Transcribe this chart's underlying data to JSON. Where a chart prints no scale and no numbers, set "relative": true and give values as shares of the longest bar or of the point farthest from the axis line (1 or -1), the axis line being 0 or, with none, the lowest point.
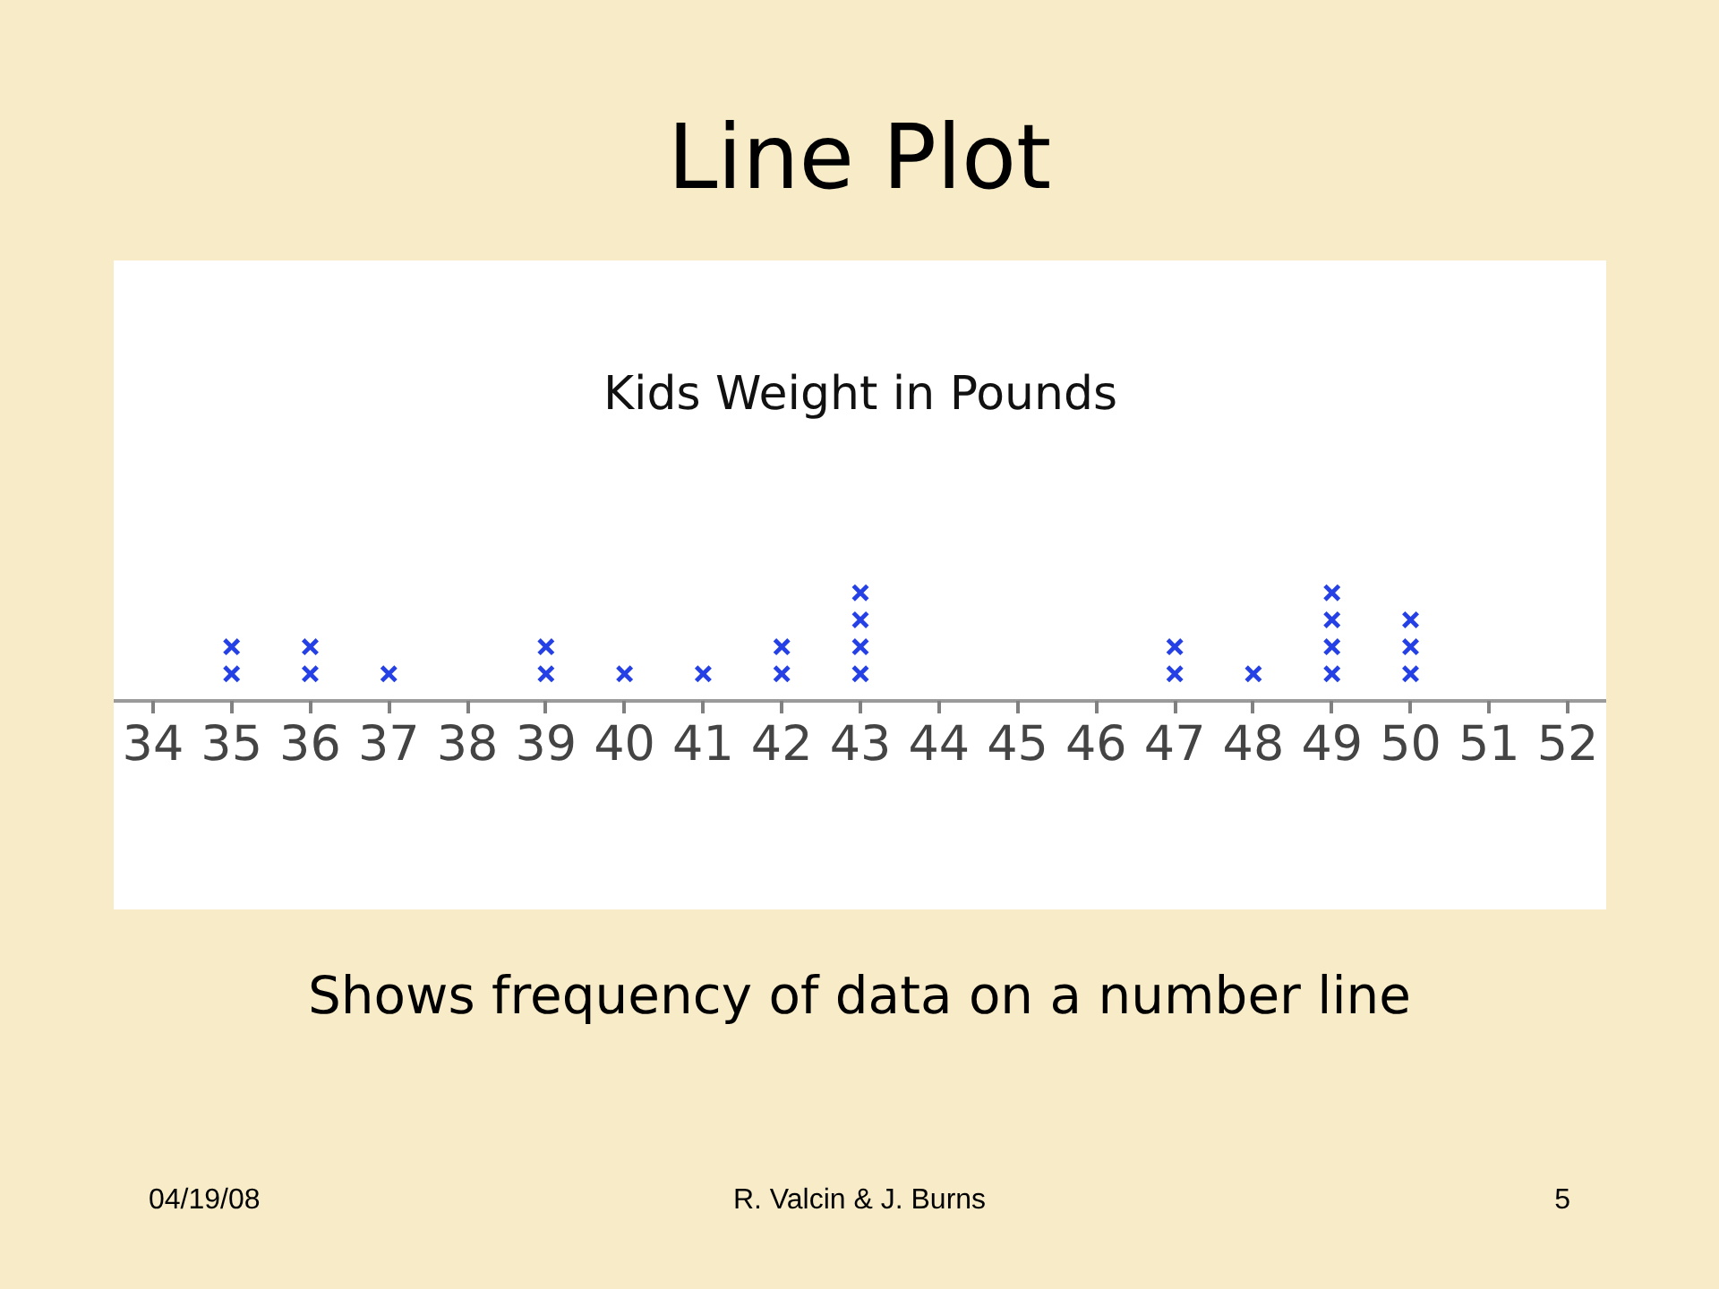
{
  "chart_data": {
    "type": "scatter",
    "title": "Line Plot",
    "subtitle": "Kids Weight in Pounds",
    "annotations": [
      "Shows frequency of data on a number line",
      "04/19/08",
      "R. Valcin & J. Burns",
      "5"
    ],
    "x": [
      35,
      35,
      36,
      36,
      37,
      39,
      39,
      40,
      41,
      42,
      42,
      43,
      43,
      43,
      43,
      47,
      47,
      48,
      49,
      49,
      49,
      49,
      50,
      50,
      50
    ],
    "series": [
      {
        "color": "#2541e6",
        "values": [
          0.25,
          0.5,
          0.25,
          0.5,
          0.25,
          0.25,
          0.5,
          0.25,
          0.25,
          0.25,
          0.5,
          0.25,
          0.5,
          0.75,
          1,
          0.25,
          0.5,
          0.25,
          0.25,
          0.5,
          0.75,
          1,
          0.25,
          0.5,
          0.75
        ]
      }
    ],
    "relative": true,
    "marker": "cross",
    "xlim": [
      33.5,
      52.5
    ],
    "xticks": [
      34,
      35,
      36,
      37,
      38,
      39,
      40,
      41,
      42,
      43,
      44,
      45,
      46,
      47,
      48,
      49,
      50,
      51,
      52
    ]
  }
}
